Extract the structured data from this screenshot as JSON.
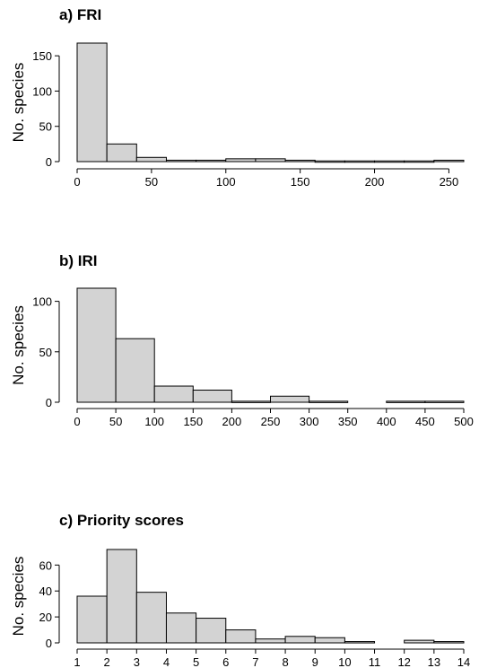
{
  "colors": {
    "bar_fill": "#d3d3d3",
    "bar_stroke": "#000000"
  },
  "chart_data": [
    {
      "type": "bar",
      "title": "a) FRI",
      "ylabel": "No. species",
      "xlabel": "",
      "bin_width": 20,
      "bins_start": [
        0,
        20,
        40,
        60,
        80,
        100,
        120,
        140,
        160,
        180,
        200,
        220,
        240
      ],
      "values": [
        168,
        25,
        6,
        2,
        2,
        4,
        4,
        2,
        1,
        1,
        1,
        1,
        2
      ],
      "xlim": [
        0,
        260
      ],
      "ylim": [
        0,
        168
      ],
      "xticks": [
        0,
        50,
        100,
        150,
        200,
        250
      ],
      "yticks": [
        0,
        50,
        100,
        150
      ]
    },
    {
      "type": "bar",
      "title": "b) IRI",
      "ylabel": "No. species",
      "xlabel": "",
      "bin_width": 50,
      "bins_start": [
        0,
        50,
        100,
        150,
        200,
        250,
        300,
        350,
        400,
        450
      ],
      "values": [
        113,
        63,
        16,
        12,
        1,
        6,
        1,
        0,
        1,
        1
      ],
      "xlim": [
        0,
        500
      ],
      "ylim": [
        0,
        113
      ],
      "xticks": [
        0,
        50,
        100,
        150,
        200,
        250,
        300,
        350,
        400,
        450,
        500
      ],
      "yticks": [
        0,
        50,
        100
      ]
    },
    {
      "type": "bar",
      "title": "c) Priority scores",
      "ylabel": "No. species",
      "xlabel": "",
      "bin_width": 1,
      "bins_start": [
        1,
        2,
        3,
        4,
        5,
        6,
        7,
        8,
        9,
        10,
        11,
        12,
        13
      ],
      "values": [
        36,
        72,
        39,
        23,
        19,
        10,
        3,
        5,
        4,
        1,
        0,
        2,
        1
      ],
      "xlim": [
        1,
        14
      ],
      "ylim": [
        0,
        72
      ],
      "xticks": [
        1,
        2,
        3,
        4,
        5,
        6,
        7,
        8,
        9,
        10,
        11,
        12,
        13,
        14
      ],
      "yticks": [
        0,
        20,
        40,
        60
      ]
    }
  ]
}
